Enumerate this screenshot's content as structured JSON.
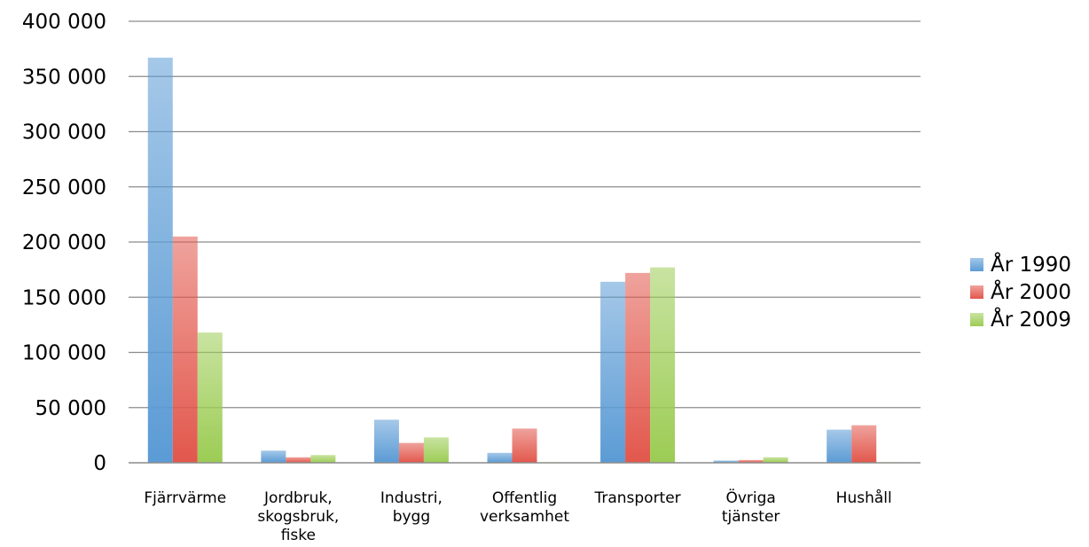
{
  "chart_data": {
    "type": "bar",
    "categories": [
      [
        "Fjärrvärme"
      ],
      [
        "Jordbruk,",
        "skogsbruk,",
        "fiske"
      ],
      [
        "Industri,",
        "bygg"
      ],
      [
        "Offentlig",
        "verksamhet"
      ],
      [
        "Transporter"
      ],
      [
        "Övriga",
        "tjänster"
      ],
      [
        "Hushåll"
      ]
    ],
    "series": [
      {
        "name": "År 1990",
        "color": "#5b9bd5",
        "values": [
          367000,
          11000,
          39000,
          9000,
          164000,
          2000,
          30000
        ]
      },
      {
        "name": "År 2000",
        "color": "#e2574c",
        "values": [
          205000,
          5000,
          18000,
          31000,
          172000,
          2500,
          34000
        ]
      },
      {
        "name": "År 2009",
        "color": "#9ccc54",
        "values": [
          118000,
          7000,
          23000,
          500,
          177000,
          5000,
          500
        ]
      }
    ],
    "ylim": [
      0,
      400000
    ],
    "yticks": [
      {
        "value": 0,
        "label": "0"
      },
      {
        "value": 50000,
        "label": "50 000"
      },
      {
        "value": 100000,
        "label": "100 000"
      },
      {
        "value": 150000,
        "label": "150 000"
      },
      {
        "value": 200000,
        "label": "200 000"
      },
      {
        "value": 250000,
        "label": "250 000"
      },
      {
        "value": 300000,
        "label": "300 000"
      },
      {
        "value": 350000,
        "label": "350 000"
      },
      {
        "value": 400000,
        "label": "400 000"
      }
    ],
    "grid": true,
    "legend": "right"
  }
}
